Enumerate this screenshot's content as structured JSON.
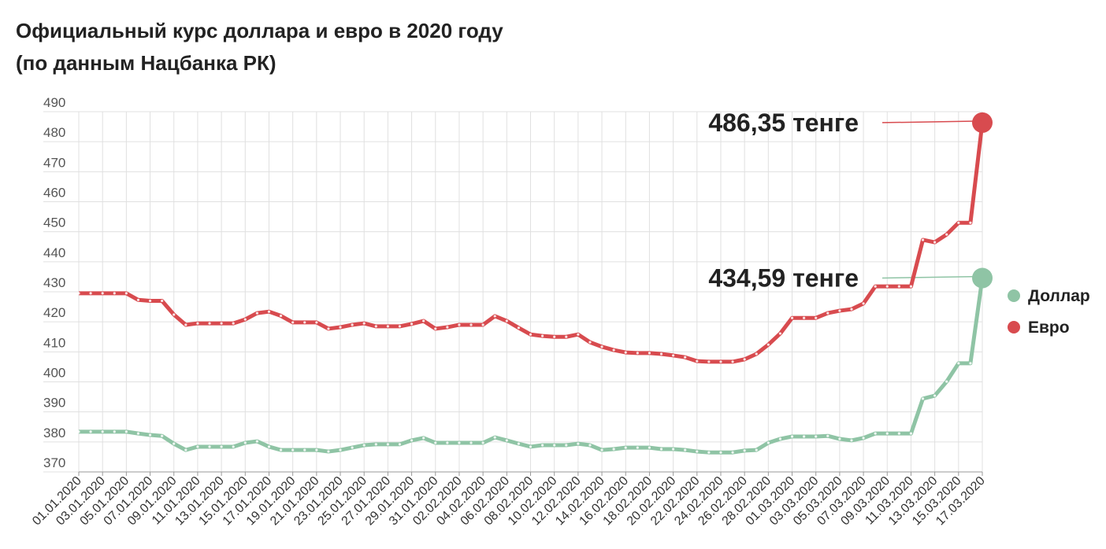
{
  "chart_data": {
    "type": "line",
    "title": "Официальный курс доллара и евро в 2020 году",
    "subtitle": "(по данным Нацбанка РК)",
    "categories": [
      "01.01.2020",
      null,
      "03.01.2020",
      null,
      "05.01.2020",
      null,
      "07.01.2020",
      null,
      "09.01.2020",
      null,
      "11.01.2020",
      null,
      "13.01.2020",
      null,
      "15.01.2020",
      null,
      "17.01.2020",
      null,
      "19.01.2020",
      null,
      "21.01.2020",
      null,
      "23.01.2020",
      null,
      "25.01.2020",
      null,
      "27.01.2020",
      null,
      "29.01.2020",
      null,
      "31.01.2020",
      null,
      "02.02.2020",
      null,
      "04.02.2020",
      null,
      "06.02.2020",
      null,
      "08.02.2020",
      null,
      "10.02.2020",
      null,
      "12.02.2020",
      null,
      "14.02.2020",
      null,
      "16.02.2020",
      null,
      "18.02.2020",
      null,
      "20.02.2020",
      null,
      "22.02.2020",
      null,
      "24.02.2020",
      null,
      "26.02.2020",
      null,
      "28.02.2020",
      null,
      "01.03.2020",
      null,
      "03.03.2020",
      null,
      "05.03.2020",
      null,
      "07.03.2020",
      null,
      "09.03.2020",
      null,
      "11.03.2020",
      null,
      "13.03.2020",
      null,
      "15.03.2020",
      null,
      "17.03.2020"
    ],
    "series": [
      {
        "name": "Доллар",
        "color": "#8fc4a5",
        "values": [
          383.4,
          383.4,
          383.4,
          383.4,
          383.4,
          382.8,
          382.3,
          382,
          379.4,
          377.3,
          378.4,
          378.4,
          378.4,
          378.4,
          379.7,
          380.2,
          378.4,
          377.3,
          377.3,
          377.3,
          377.3,
          376.8,
          377.3,
          378.1,
          378.9,
          379.2,
          379.2,
          379.2,
          380.5,
          381.3,
          379.7,
          379.7,
          379.7,
          379.7,
          379.7,
          381.5,
          380.5,
          379.4,
          378.4,
          378.9,
          378.9,
          378.9,
          379.4,
          378.9,
          377.3,
          377.6,
          378.1,
          378.1,
          378.1,
          377.6,
          377.6,
          377.3,
          376.8,
          376.5,
          376.5,
          376.5,
          377.1,
          377.3,
          379.7,
          381,
          381.8,
          381.8,
          381.8,
          382,
          381,
          380.5,
          381.3,
          382.8,
          382.8,
          382.8,
          382.8,
          394.4,
          395.4,
          400.1,
          406.2,
          406.2,
          434.59
        ]
      },
      {
        "name": "Евро",
        "color": "#d84b4f",
        "values": [
          429.5,
          429.5,
          429.5,
          429.5,
          429.5,
          427.3,
          427,
          427,
          422.4,
          419,
          419.5,
          419.5,
          419.5,
          419.5,
          420.8,
          422.9,
          423.4,
          422,
          419.8,
          419.8,
          419.8,
          417.7,
          418.2,
          419,
          419.5,
          418.5,
          418.5,
          418.5,
          419.3,
          420.3,
          417.7,
          418.2,
          419,
          419,
          419,
          421.9,
          420.3,
          418,
          415.8,
          415.3,
          415,
          415,
          415.8,
          413.2,
          411.7,
          410.6,
          409.8,
          409.6,
          409.6,
          409.3,
          408.8,
          408.2,
          406.9,
          406.7,
          406.7,
          406.7,
          407.5,
          409.3,
          412.4,
          416.1,
          421.3,
          421.3,
          421.3,
          422.9,
          423.7,
          424.2,
          426.1,
          431.8,
          431.8,
          431.8,
          431.8,
          447.3,
          446.5,
          449.1,
          453,
          453,
          486.35
        ]
      }
    ],
    "annotations": [
      "434,59 тенге",
      "486,35 тенге"
    ],
    "ylim": [
      370,
      490
    ],
    "yticks": [
      370,
      380,
      390,
      400,
      410,
      420,
      430,
      440,
      450,
      460,
      470,
      480,
      490
    ],
    "grid": true,
    "legend": "right"
  }
}
